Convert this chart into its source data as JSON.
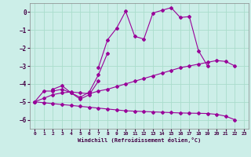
{
  "xlabel": "Windchill (Refroidissement éolien,°C)",
  "background_color": "#cceee8",
  "grid_color": "#aaddcc",
  "line_color": "#990099",
  "xlim": [
    -0.5,
    23.5
  ],
  "ylim": [
    -6.5,
    0.5
  ],
  "yticks": [
    0,
    -1,
    -2,
    -3,
    -4,
    -5,
    -6
  ],
  "xticks": [
    0,
    1,
    2,
    3,
    4,
    5,
    6,
    7,
    8,
    9,
    10,
    11,
    12,
    13,
    14,
    15,
    16,
    17,
    18,
    19,
    20,
    21,
    22,
    23
  ],
  "series1_x": [
    7,
    8,
    9,
    10,
    11,
    12,
    13,
    14,
    15,
    16,
    17,
    18,
    19
  ],
  "series1_y": [
    -3.1,
    -1.55,
    -0.9,
    0.05,
    -1.35,
    -1.5,
    -0.05,
    0.1,
    0.25,
    -0.3,
    -0.25,
    -2.15,
    -3.0
  ],
  "series2_x": [
    0,
    1,
    2,
    3,
    4,
    5,
    6,
    7,
    8
  ],
  "series2_y": [
    -5.0,
    -4.4,
    -4.4,
    -4.3,
    -4.5,
    -4.75,
    -4.45,
    -3.5,
    -2.3
  ],
  "series3_x": [
    2,
    3,
    4,
    5,
    6,
    7
  ],
  "series3_y": [
    -4.3,
    -4.1,
    -4.5,
    -4.85,
    -4.6,
    -3.85
  ],
  "series4_x": [
    0,
    1,
    2,
    3,
    4,
    5,
    6,
    7,
    8,
    9,
    10,
    11,
    12,
    13,
    14,
    15,
    16,
    17,
    18,
    19,
    20,
    21,
    22
  ],
  "series4_y": [
    -5.0,
    -4.8,
    -4.6,
    -4.5,
    -4.45,
    -4.5,
    -4.55,
    -4.4,
    -4.3,
    -4.15,
    -4.0,
    -3.85,
    -3.7,
    -3.55,
    -3.4,
    -3.25,
    -3.1,
    -3.0,
    -2.9,
    -2.8,
    -2.7,
    -2.75,
    -3.0
  ],
  "series5_x": [
    0,
    1,
    2,
    3,
    4,
    5,
    6,
    7,
    8,
    9,
    10,
    11,
    12,
    13,
    14,
    15,
    16,
    17,
    18,
    19,
    20,
    21,
    22
  ],
  "series5_y": [
    -5.0,
    -5.05,
    -5.1,
    -5.15,
    -5.2,
    -5.25,
    -5.3,
    -5.35,
    -5.4,
    -5.45,
    -5.5,
    -5.52,
    -5.54,
    -5.56,
    -5.58,
    -5.6,
    -5.62,
    -5.63,
    -5.64,
    -5.65,
    -5.7,
    -5.8,
    -6.0
  ]
}
